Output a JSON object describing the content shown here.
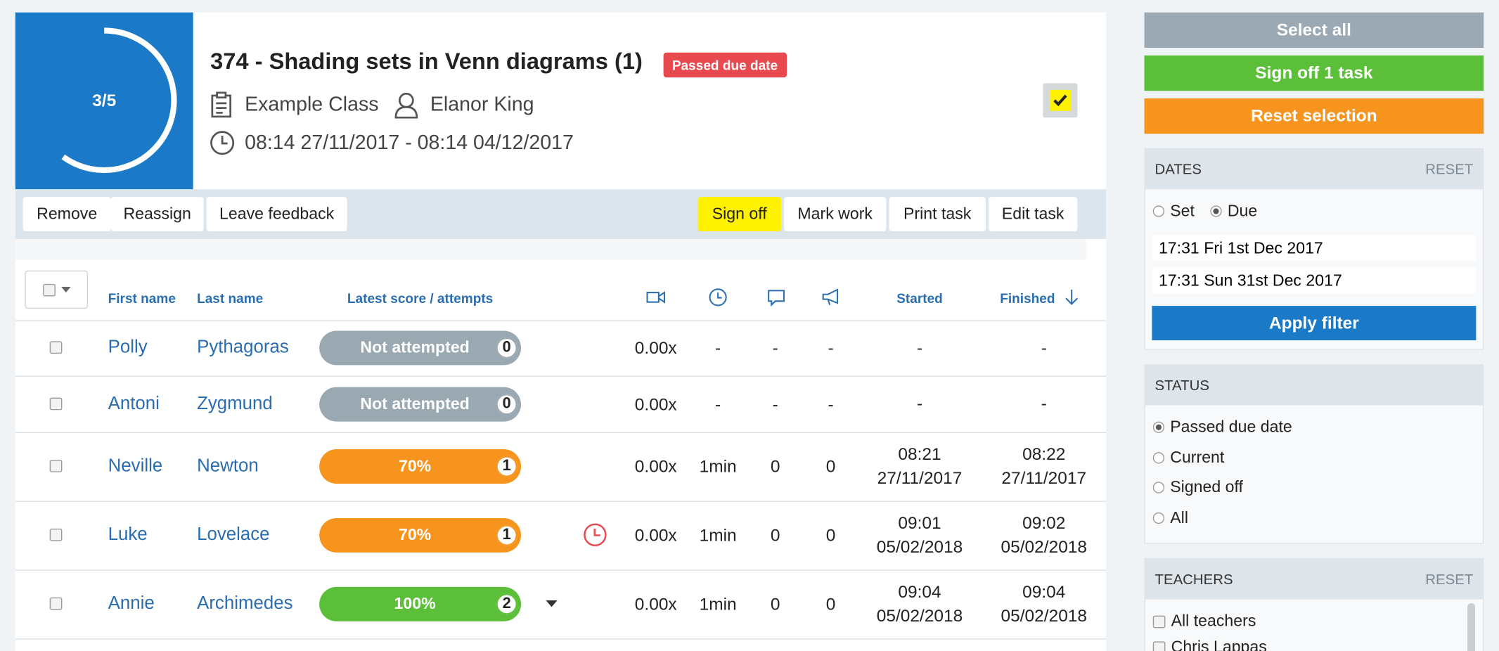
{
  "header": {
    "progress": "3/5",
    "title": "374 - Shading sets in Venn diagrams (1)",
    "badge": "Passed due date",
    "class_name": "Example Class",
    "teacher": "Elanor King",
    "dates": "08:14 27/11/2017 - 08:14 04/12/2017"
  },
  "actions_left": [
    "Remove",
    "Reassign",
    "Leave feedback"
  ],
  "actions_right": [
    "Sign off",
    "Mark work",
    "Print task",
    "Edit task"
  ],
  "table": {
    "columns": {
      "first": "First name",
      "last": "Last name",
      "score": "Latest score / attempts",
      "started": "Started",
      "finished": "Finished"
    },
    "rows": [
      {
        "first": "Polly",
        "last": "Pythagoras",
        "score": "Not attempted",
        "attempts": "0",
        "color": "#9aa8b2",
        "rate": "0.00x",
        "time": "-",
        "comments": "-",
        "announcements": "-",
        "started": [
          "-"
        ],
        "finished": [
          "-"
        ]
      },
      {
        "first": "Antoni",
        "last": "Zygmund",
        "score": "Not attempted",
        "attempts": "0",
        "color": "#9aa8b2",
        "rate": "0.00x",
        "time": "-",
        "comments": "-",
        "announcements": "-",
        "started": [
          "-"
        ],
        "finished": [
          "-"
        ]
      },
      {
        "first": "Neville",
        "last": "Newton",
        "score": "70%",
        "attempts": "1",
        "color": "#f7941d",
        "rate": "0.00x",
        "time": "1min",
        "comments": "0",
        "announcements": "0",
        "started": [
          "08:21",
          "27/11/2017"
        ],
        "finished": [
          "08:22",
          "27/11/2017"
        ]
      },
      {
        "first": "Luke",
        "last": "Lovelace",
        "score": "70%",
        "attempts": "1",
        "color": "#f7941d",
        "rate": "0.00x",
        "time": "1min",
        "comments": "0",
        "announcements": "0",
        "started": [
          "09:01",
          "05/02/2018"
        ],
        "finished": [
          "09:02",
          "05/02/2018"
        ]
      },
      {
        "first": "Annie",
        "last": "Archimedes",
        "score": "100%",
        "attempts": "2",
        "color": "#5cbf3a",
        "rate": "0.00x",
        "time": "1min",
        "comments": "0",
        "announcements": "0",
        "started": [
          "09:04",
          "05/02/2018"
        ],
        "finished": [
          "09:04",
          "05/02/2018"
        ]
      }
    ]
  },
  "sidebar": {
    "select_all": "Select all",
    "sign_off": "Sign off 1 task",
    "reset_selection": "Reset selection",
    "dates": {
      "title": "DATES",
      "reset": "RESET",
      "options": [
        "Set",
        "Due"
      ],
      "from": "17:31 Fri 1st Dec 2017",
      "to": "17:31 Sun 31st Dec 2017",
      "apply": "Apply filter"
    },
    "status": {
      "title": "STATUS",
      "options": [
        "Passed due date",
        "Current",
        "Signed off",
        "All"
      ]
    },
    "teachers": {
      "title": "TEACHERS",
      "reset": "RESET",
      "options": [
        "All teachers",
        "Chris Lappas"
      ]
    }
  }
}
